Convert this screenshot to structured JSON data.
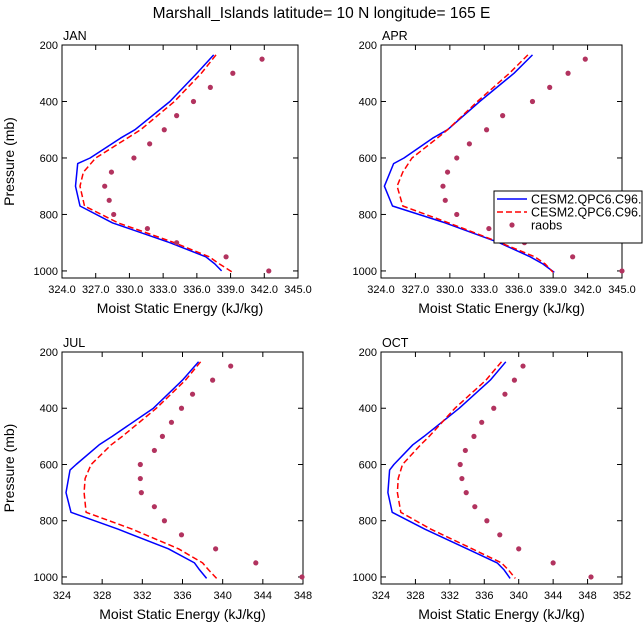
{
  "figure": {
    "title": "Marshall_Islands  latitude= 10 N longitude= 165 E"
  },
  "legend": {
    "placement": "right of APR panel",
    "entries": [
      {
        "label": "CESM2.QPC6.C96.",
        "color": "#0000ff",
        "style": "solid"
      },
      {
        "label": "CESM2.QPC6.C96.",
        "color": "#ff0000",
        "style": "dashed"
      },
      {
        "label": "raobs",
        "color": "#b2335f",
        "style": "dots"
      }
    ]
  },
  "chart_data": [
    {
      "type": "line",
      "title": "JAN",
      "xlabel": "Moist Static Energy (kJ/kg)",
      "ylabel": "Pressure (mb)",
      "xlim": [
        324,
        345
      ],
      "ylim": [
        200,
        1025
      ],
      "xticks": [
        324,
        327,
        330,
        333,
        336,
        339,
        342,
        345
      ],
      "xtick_labels": [
        "324.0",
        "327.0",
        "330.0",
        "333.0",
        "336.0",
        "339.0",
        "342.0",
        "345.0"
      ],
      "yticks": [
        200,
        400,
        600,
        800,
        1000
      ],
      "ytick_labels": [
        "200",
        "400",
        "600",
        "800",
        "1000"
      ],
      "series": [
        {
          "name": "CESM2.QPC6.C96.",
          "color": "#0000ff",
          "style": "solid",
          "pressure": [
            235,
            300,
            400,
            500,
            530,
            600,
            620,
            700,
            770,
            830,
            900,
            950,
            975,
            1000
          ],
          "mse": [
            337.5,
            336.0,
            333.6,
            330.5,
            329.2,
            326.5,
            325.4,
            325.2,
            325.6,
            328.5,
            333.6,
            336.8,
            337.6,
            338.2
          ]
        },
        {
          "name": "CESM2.QPC6.C96.",
          "color": "#ff0000",
          "style": "dashed",
          "pressure": [
            235,
            300,
            400,
            500,
            530,
            600,
            650,
            700,
            770,
            830,
            900,
            950,
            975,
            1005
          ],
          "mse": [
            337.7,
            336.4,
            334.0,
            331.0,
            329.8,
            327.0,
            325.9,
            325.6,
            326.0,
            329.0,
            334.0,
            337.1,
            338.0,
            339.2
          ]
        }
      ],
      "points": {
        "name": "raobs",
        "pressure": [
          250,
          300,
          350,
          400,
          450,
          500,
          550,
          600,
          650,
          700,
          750,
          800,
          850,
          900,
          950,
          1000
        ],
        "mse": [
          341.8,
          339.2,
          337.2,
          335.7,
          334.2,
          333.1,
          331.8,
          330.4,
          328.4,
          327.8,
          328.2,
          328.6,
          331.6,
          334.2,
          338.6,
          342.4
        ]
      }
    },
    {
      "type": "line",
      "title": "APR",
      "xlabel": "Moist Static Energy (kJ/kg)",
      "ylabel": "",
      "xlim": [
        324,
        345
      ],
      "ylim": [
        200,
        1025
      ],
      "xticks": [
        324,
        327,
        330,
        333,
        336,
        339,
        342,
        345
      ],
      "xtick_labels": [
        "324.0",
        "327.0",
        "330.0",
        "333.0",
        "336.0",
        "339.0",
        "342.0",
        "345.0"
      ],
      "yticks": [
        200,
        400,
        600,
        800,
        1000
      ],
      "ytick_labels": [
        "200",
        "400",
        "600",
        "800",
        "1000"
      ],
      "series": [
        {
          "name": "CESM2.QPC6.C96.",
          "color": "#0000ff",
          "style": "solid",
          "pressure": [
            235,
            300,
            400,
            500,
            530,
            600,
            620,
            700,
            770,
            830,
            900,
            950,
            975,
            1005
          ],
          "mse": [
            337.2,
            335.6,
            332.6,
            329.8,
            328.5,
            326.0,
            325.1,
            324.3,
            325.0,
            329.6,
            334.3,
            337.0,
            338.1,
            339.1
          ]
        },
        {
          "name": "CESM2.QPC6.C96.",
          "color": "#ff0000",
          "style": "dashed",
          "pressure": [
            235,
            300,
            400,
            500,
            530,
            600,
            650,
            700,
            770,
            830,
            900,
            950,
            975,
            1005
          ],
          "mse": [
            336.8,
            335.2,
            332.4,
            329.8,
            328.9,
            326.7,
            325.9,
            325.4,
            325.9,
            329.9,
            334.4,
            337.4,
            338.3,
            339.0
          ]
        }
      ],
      "points": {
        "name": "raobs",
        "pressure": [
          250,
          300,
          350,
          400,
          450,
          500,
          550,
          600,
          650,
          700,
          750,
          800,
          850,
          900,
          950,
          1000
        ],
        "mse": [
          341.8,
          340.3,
          338.7,
          337.2,
          334.6,
          333.2,
          331.7,
          330.6,
          329.8,
          329.4,
          329.6,
          330.6,
          333.4,
          336.5,
          340.7,
          345.0
        ]
      }
    },
    {
      "type": "line",
      "title": "JUL",
      "xlabel": "Moist Static Energy (kJ/kg)",
      "ylabel": "Pressure (mb)",
      "xlim": [
        324,
        348
      ],
      "ylim": [
        200,
        1025
      ],
      "xticks": [
        324,
        328,
        332,
        336,
        340,
        344,
        348
      ],
      "xtick_labels": [
        "324",
        "328",
        "332",
        "336",
        "340",
        "344",
        "348"
      ],
      "yticks": [
        200,
        400,
        600,
        800,
        1000
      ],
      "ytick_labels": [
        "200",
        "400",
        "600",
        "800",
        "1000"
      ],
      "series": [
        {
          "name": "CESM2.QPC6.C96.",
          "color": "#0000ff",
          "style": "solid",
          "pressure": [
            235,
            300,
            400,
            500,
            530,
            600,
            620,
            700,
            770,
            830,
            900,
            950,
            975,
            1005
          ],
          "mse": [
            337.6,
            336.0,
            333.1,
            329.0,
            327.7,
            325.4,
            324.8,
            324.4,
            324.9,
            329.6,
            334.6,
            337.2,
            337.7,
            338.4
          ]
        },
        {
          "name": "CESM2.QPC6.C96.",
          "color": "#ff0000",
          "style": "dashed",
          "pressure": [
            235,
            300,
            400,
            500,
            530,
            600,
            650,
            700,
            770,
            830,
            900,
            950,
            975,
            1005
          ],
          "mse": [
            337.8,
            336.3,
            333.4,
            330.0,
            328.9,
            326.9,
            326.3,
            326.2,
            326.4,
            331.0,
            335.6,
            338.0,
            338.6,
            339.4
          ]
        }
      ],
      "points": {
        "name": "raobs",
        "pressure": [
          250,
          300,
          350,
          400,
          450,
          500,
          550,
          600,
          650,
          700,
          750,
          800,
          850,
          900,
          950,
          1000
        ],
        "mse": [
          340.8,
          339.0,
          337.0,
          335.9,
          334.9,
          334.0,
          333.2,
          331.8,
          331.8,
          331.9,
          333.2,
          334.2,
          335.9,
          339.3,
          343.3,
          347.9
        ]
      }
    },
    {
      "type": "line",
      "title": "OCT",
      "xlabel": "Moist Static Energy (kJ/kg)",
      "ylabel": "",
      "xlim": [
        324,
        352
      ],
      "ylim": [
        200,
        1025
      ],
      "xticks": [
        324,
        328,
        332,
        336,
        340,
        344,
        348,
        352
      ],
      "xtick_labels": [
        "324",
        "328",
        "332",
        "336",
        "340",
        "344",
        "348",
        "352"
      ],
      "yticks": [
        200,
        400,
        600,
        800,
        1000
      ],
      "ytick_labels": [
        "200",
        "400",
        "600",
        "800",
        "1000"
      ],
      "series": [
        {
          "name": "CESM2.QPC6.C96.",
          "color": "#0000ff",
          "style": "solid",
          "pressure": [
            235,
            300,
            400,
            500,
            530,
            600,
            620,
            700,
            770,
            830,
            900,
            950,
            975,
            1005
          ],
          "mse": [
            338.5,
            336.7,
            333.1,
            329.0,
            327.7,
            325.5,
            325.0,
            324.8,
            325.3,
            329.1,
            334.0,
            337.5,
            338.3,
            339.0
          ]
        },
        {
          "name": "CESM2.QPC6.C96.",
          "color": "#ff0000",
          "style": "dashed",
          "pressure": [
            235,
            300,
            400,
            500,
            530,
            600,
            650,
            700,
            770,
            830,
            900,
            950,
            975,
            1005
          ],
          "mse": [
            338.0,
            336.2,
            332.6,
            329.6,
            328.6,
            326.5,
            326.0,
            325.9,
            326.3,
            329.8,
            334.6,
            338.0,
            338.8,
            339.6
          ]
        }
      ],
      "points": {
        "name": "raobs",
        "pressure": [
          250,
          300,
          350,
          400,
          450,
          500,
          550,
          600,
          650,
          700,
          750,
          800,
          850,
          900,
          950,
          1000
        ],
        "mse": [
          340.5,
          339.5,
          338.4,
          337.1,
          335.7,
          334.8,
          333.8,
          333.2,
          333.4,
          333.9,
          334.9,
          336.3,
          337.8,
          340.0,
          344.0,
          348.4
        ]
      }
    }
  ]
}
